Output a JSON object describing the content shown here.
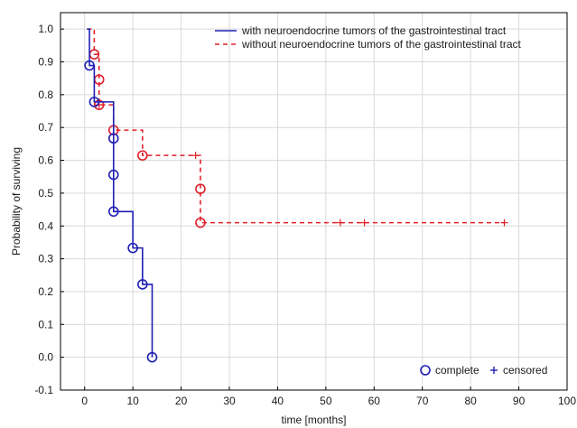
{
  "chart_data": {
    "type": "line",
    "subtype": "kaplan-meier step plot",
    "title": "",
    "xlabel": "time [months]",
    "ylabel": "Probability of surviving",
    "xlim": [
      -5,
      100
    ],
    "ylim": [
      -0.1,
      1.05
    ],
    "xticks": [
      0,
      10,
      20,
      30,
      40,
      50,
      60,
      70,
      80,
      90,
      100
    ],
    "yticks": [
      -0.1,
      0.0,
      0.1,
      0.2,
      0.3,
      0.4,
      0.5,
      0.6,
      0.7,
      0.8,
      0.9,
      1.0
    ],
    "ytick_labels": [
      "-0.1",
      "0.0",
      "0.1",
      "0.2",
      "0.3",
      "0.4",
      "0.5",
      "0.6",
      "0.7",
      "0.8",
      "0.9",
      "1.0"
    ],
    "grid": true,
    "legend_position": "top-right",
    "series": [
      {
        "name": "with neuroendocrine tumors of the gastrointestinal tract",
        "color": "#1f1fb4",
        "line_style": "solid",
        "steps": [
          [
            0.5,
            1.0
          ],
          [
            1,
            0.889
          ],
          [
            2,
            0.778
          ],
          [
            6,
            0.444
          ],
          [
            10,
            0.333
          ],
          [
            12,
            0.222
          ],
          [
            14,
            0.0
          ]
        ],
        "complete": [
          [
            1,
            0.889
          ],
          [
            2,
            0.778
          ],
          [
            6,
            0.667
          ],
          [
            6,
            0.556
          ],
          [
            6,
            0.444
          ],
          [
            10,
            0.333
          ],
          [
            12,
            0.222
          ],
          [
            14,
            0.0
          ]
        ],
        "censored": []
      },
      {
        "name": "without neuroendocrine tumors of the gastrointestinal tract",
        "color": "#e0202a",
        "line_style": "dashed",
        "steps": [
          [
            0.5,
            1.0
          ],
          [
            2,
            0.923
          ],
          [
            3,
            0.846
          ],
          [
            3,
            0.769
          ],
          [
            6,
            0.692
          ],
          [
            12,
            0.615
          ],
          [
            24,
            0.41
          ],
          [
            87,
            0.41
          ]
        ],
        "complete": [
          [
            2,
            0.923
          ],
          [
            3,
            0.846
          ],
          [
            3,
            0.769
          ],
          [
            6,
            0.692
          ],
          [
            12,
            0.615
          ],
          [
            24,
            0.513
          ],
          [
            24,
            0.41
          ]
        ],
        "censored": [
          [
            3,
            0.769
          ],
          [
            23,
            0.615
          ],
          [
            53,
            0.41
          ],
          [
            58,
            0.41
          ],
          [
            87,
            0.41
          ]
        ]
      }
    ],
    "marker_legend": {
      "complete_label": "complete",
      "censored_label": "censored",
      "marker_color": "#1f1fb4"
    }
  }
}
